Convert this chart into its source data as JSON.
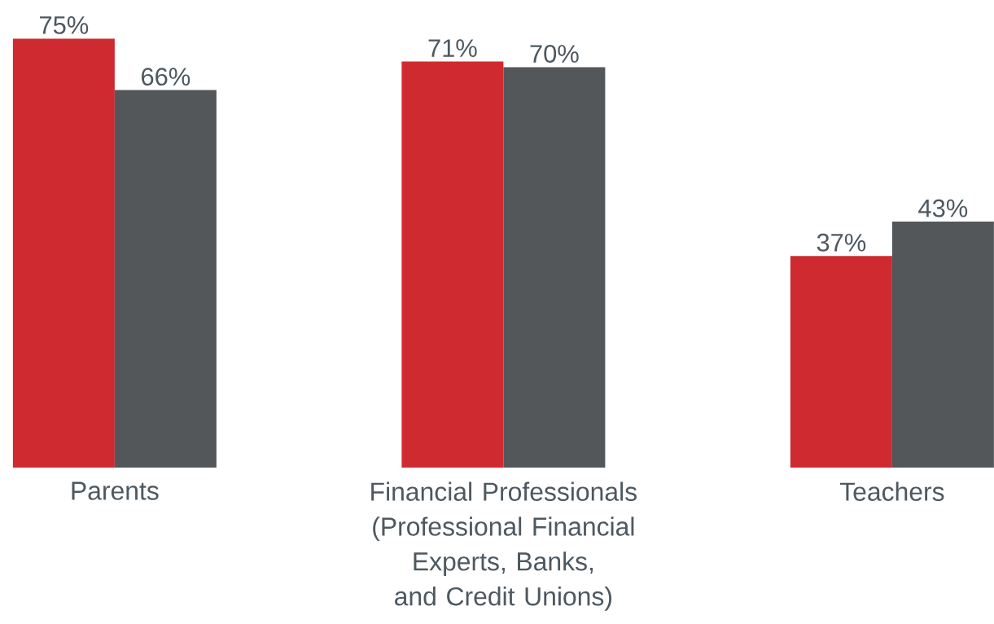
{
  "chart_data": {
    "type": "bar",
    "categories": [
      "Parents",
      "Financial Professionals (Professional Financial Experts, Banks, and Credit Unions)",
      "Teachers"
    ],
    "series": [
      {
        "color": "#cf2a2f",
        "values": [
          75,
          71,
          37
        ],
        "value_labels": [
          "75%",
          "71%",
          "37%"
        ]
      },
      {
        "color": "#53575a",
        "values": [
          66,
          70,
          43
        ],
        "value_labels": [
          "66%",
          "70%",
          "43%"
        ]
      }
    ]
  }
}
